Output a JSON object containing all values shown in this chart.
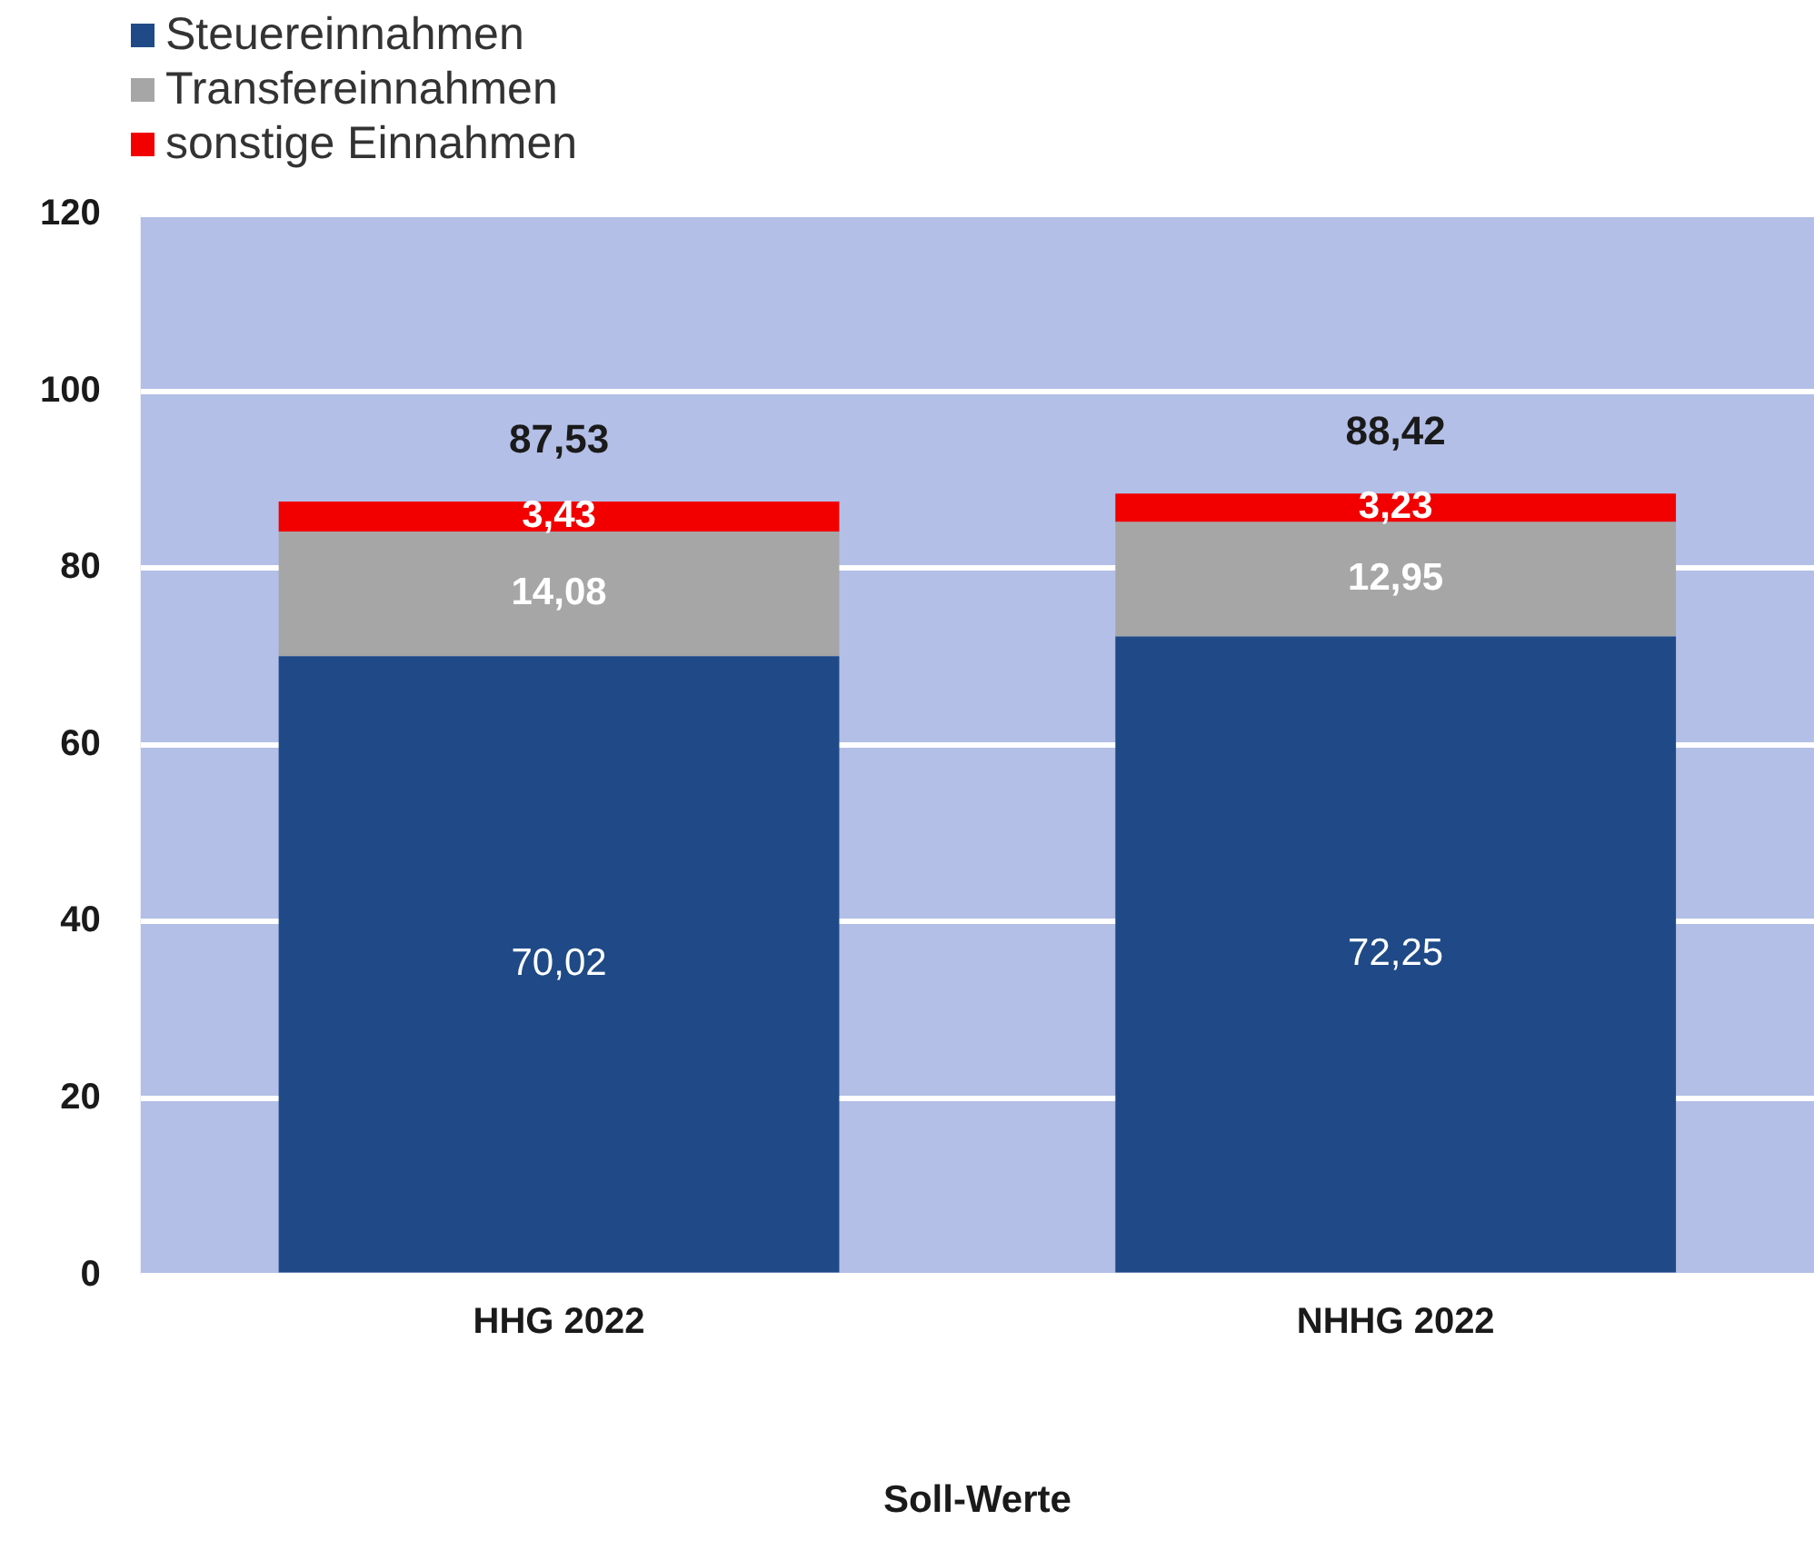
{
  "chart_data": {
    "type": "bar",
    "stacked": true,
    "xlabel": "Soll-Werte",
    "categories": [
      "HHG 2022",
      "NHHG 2022"
    ],
    "series": [
      {
        "name": "Steuereinnahmen",
        "color": "#1f4a87",
        "values": [
          70.02,
          72.25
        ],
        "value_labels": [
          "70,02",
          "72,25"
        ]
      },
      {
        "name": "Transfereinnahmen",
        "color": "#a6a6a6",
        "values": [
          14.08,
          12.95
        ],
        "value_labels": [
          "14,08",
          "12,95"
        ]
      },
      {
        "name": "sonstige Einnahmen",
        "color": "#f20000",
        "values": [
          3.43,
          3.23
        ],
        "value_labels": [
          "3,43",
          "3,23"
        ]
      }
    ],
    "ylim": [
      0,
      120
    ],
    "yticks": [
      0,
      20,
      40,
      60,
      80,
      100,
      120
    ],
    "grid": "y",
    "legend": "top left",
    "totals": [
      "87,53",
      "88,42"
    ]
  }
}
